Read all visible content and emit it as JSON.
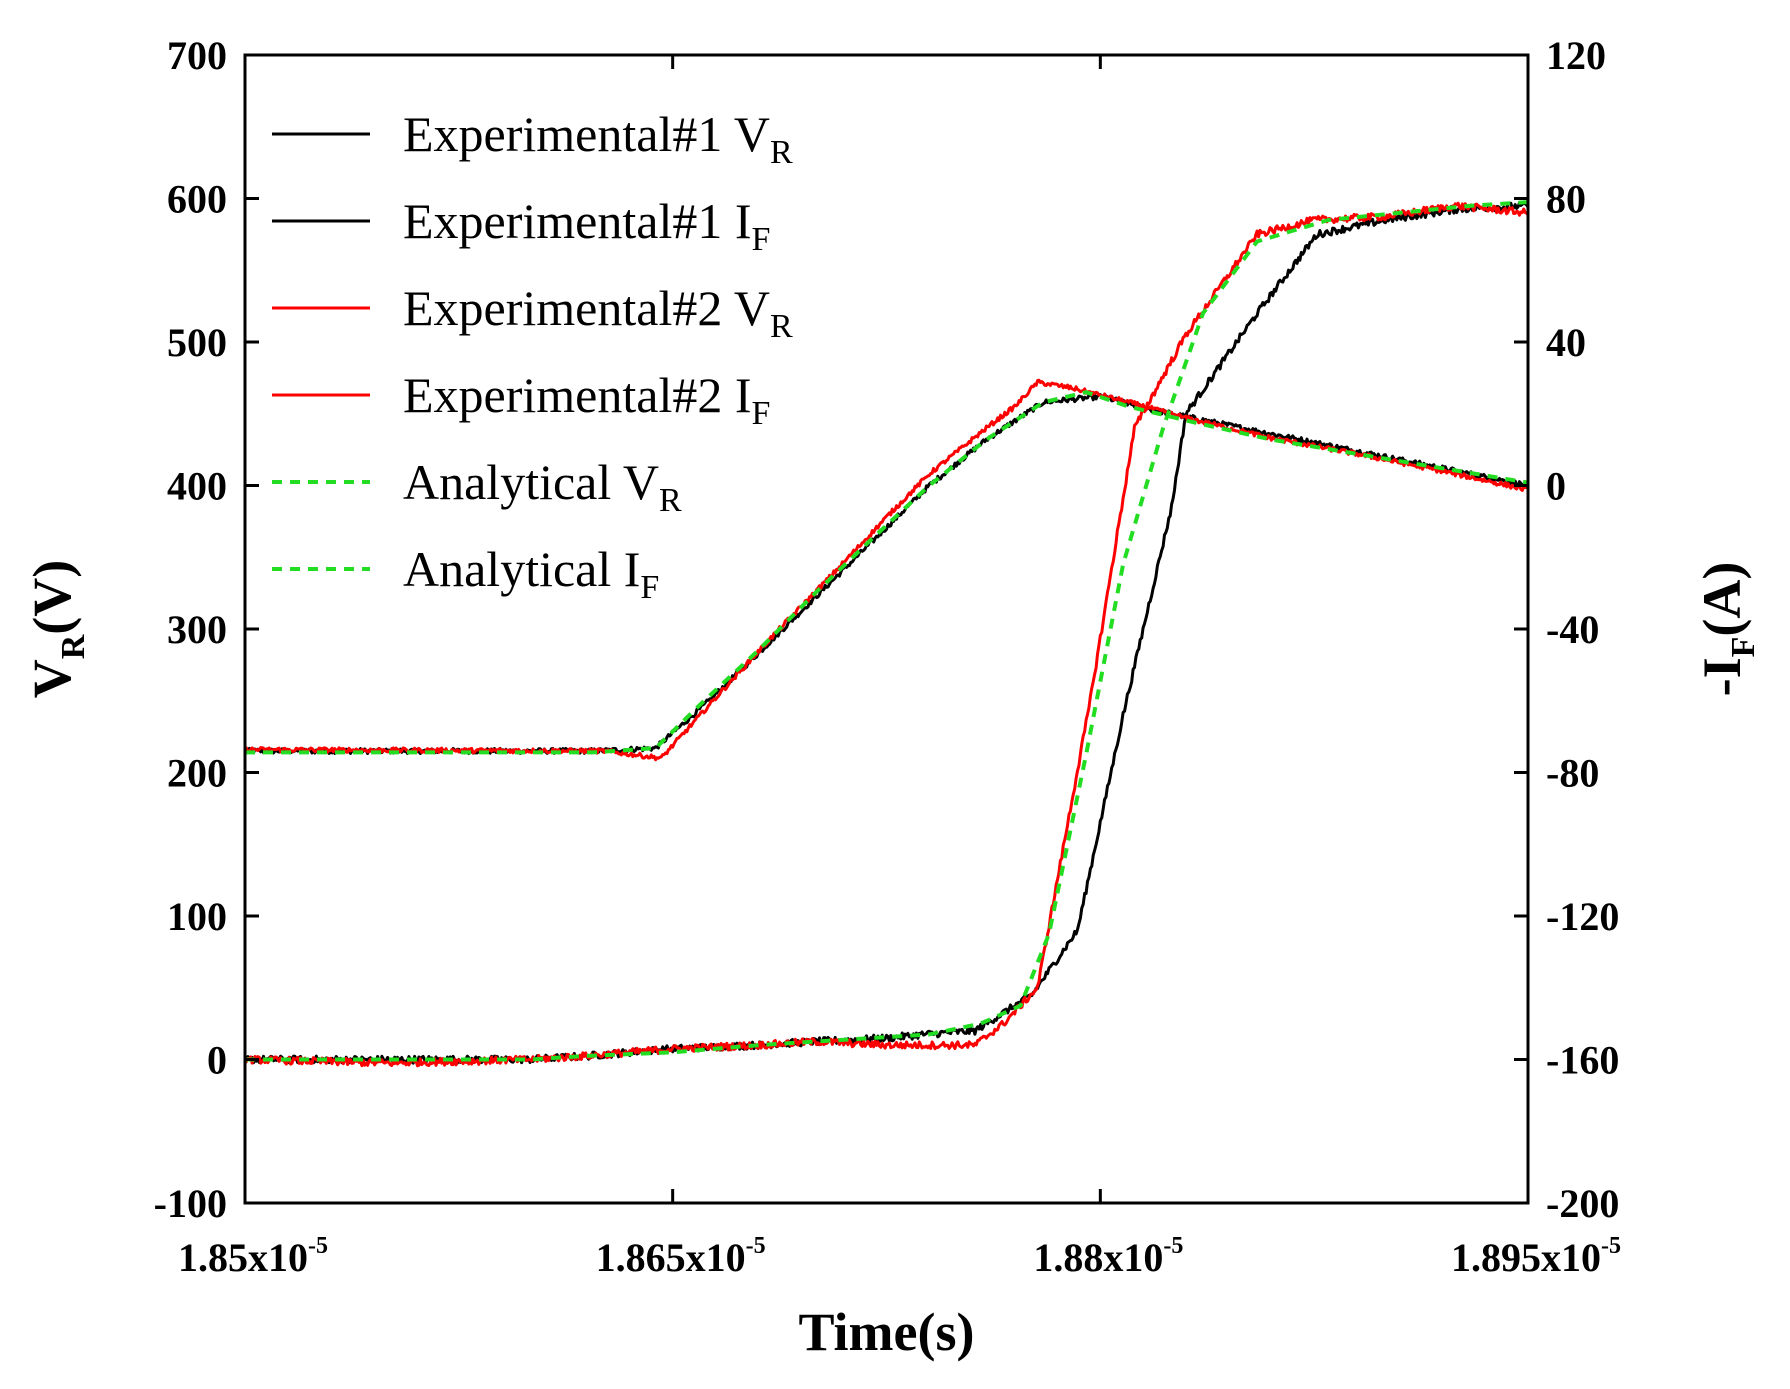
{
  "chart_data": {
    "type": "line",
    "xlabel": "Time(s)",
    "ylabel": {
      "main": "V",
      "sub": "R",
      "tail": "(V)"
    },
    "y2label": {
      "main": "-I",
      "sub": "F",
      "tail": "(A)"
    },
    "xlim": [
      1.85e-05,
      1.895e-05
    ],
    "ylim": [
      -100,
      700
    ],
    "y2lim": [
      -200,
      120
    ],
    "x_ticks": [
      {
        "value": 1.85e-05,
        "base": "1.85x10",
        "exp": "-5"
      },
      {
        "value": 1.865e-05,
        "base": "1.865x10",
        "exp": "-5"
      },
      {
        "value": 1.88e-05,
        "base": "1.88x10",
        "exp": "-5"
      },
      {
        "value": 1.895e-05,
        "base": "1.895x10",
        "exp": "-5"
      }
    ],
    "y_ticks": [
      -100,
      0,
      100,
      200,
      300,
      400,
      500,
      600,
      700
    ],
    "y_tick_labels": [
      "-100",
      "0",
      "100",
      "200",
      "300",
      "400",
      "500",
      "600",
      "700"
    ],
    "y2_ticks": [
      -200,
      -160,
      -120,
      -80,
      -40,
      0,
      40,
      80,
      120
    ],
    "y2_tick_labels": [
      "-200",
      "-160",
      "-120",
      "-80",
      "-40",
      "0",
      "40",
      "80",
      "120"
    ],
    "grid": false,
    "legend_position": "top-left",
    "series": [
      {
        "name": "Experimental#1 VR",
        "legend_main": "Experimental#1 V",
        "legend_sub": "R",
        "axis": "left",
        "color": "#000000",
        "dash": "solid",
        "noise": 1.8,
        "x": [
          1.85e-05,
          1.862e-05,
          1.8623e-05,
          1.8644e-05,
          1.866e-05,
          1.868e-05,
          1.87e-05,
          1.872e-05,
          1.874e-05,
          1.876e-05,
          1.878e-05,
          1.88e-05,
          1.882e-05,
          1.884e-05,
          1.886e-05,
          1.888e-05,
          1.89e-05,
          1.8925e-05,
          1.895e-05
        ],
        "y": [
          215,
          215,
          215,
          217,
          245,
          283,
          322,
          361,
          400,
          432,
          458,
          462,
          452,
          444,
          436,
          428,
          420,
          410,
          400
        ]
      },
      {
        "name": "Experimental#1 IF",
        "legend_main": "Experimental#1 I",
        "legend_sub": "F",
        "axis": "right",
        "color": "#000000",
        "dash": "solid",
        "noise": 1.0,
        "x": [
          1.85e-05,
          1.855e-05,
          1.86e-05,
          1.862e-05,
          1.865e-05,
          1.868e-05,
          1.87e-05,
          1.8726e-05,
          1.8738e-05,
          1.8756e-05,
          1.8776e-05,
          1.8792e-05,
          1.8808e-05,
          1.8825e-05,
          1.883e-05,
          1.8855e-05,
          1.8876e-05,
          1.89e-05,
          1.8925e-05,
          1.895e-05
        ],
        "y": [
          -160,
          -160,
          -160,
          -159,
          -157,
          -156,
          -155,
          -154,
          -153,
          -152,
          -142,
          -124,
          -64,
          -6,
          20,
          48,
          70,
          74,
          77,
          78
        ]
      },
      {
        "name": "Experimental#2 VR",
        "legend_main": "Experimental#2 V",
        "legend_sub": "R",
        "axis": "left",
        "color": "#ff0000",
        "dash": "solid",
        "noise": 1.6,
        "x": [
          1.85e-05,
          1.862e-05,
          1.8626e-05,
          1.8646e-05,
          1.8666e-05,
          1.8686e-05,
          1.8706e-05,
          1.8726e-05,
          1.874e-05,
          1.876e-05,
          1.877e-05,
          1.8778e-05,
          1.879e-05,
          1.881e-05,
          1.883e-05,
          1.886e-05,
          1.889e-05,
          1.892e-05,
          1.895e-05
        ],
        "y": [
          216,
          215,
          215,
          210,
          254,
          297,
          338,
          380,
          408,
          440,
          455,
          472,
          468,
          458,
          447,
          433,
          422,
          410,
          397
        ]
      },
      {
        "name": "Experimental#2 IF",
        "legend_main": "Experimental#2 I",
        "legend_sub": "F",
        "axis": "right",
        "color": "#ff0000",
        "dash": "solid",
        "noise": 1.0,
        "x": [
          1.85e-05,
          1.855e-05,
          1.86e-05,
          1.862e-05,
          1.865e-05,
          1.868e-05,
          1.87e-05,
          1.8726e-05,
          1.8738e-05,
          1.8756e-05,
          1.8766e-05,
          1.8778e-05,
          1.8796e-05,
          1.8812e-05,
          1.883e-05,
          1.8855e-05,
          1.8875e-05,
          1.89e-05,
          1.8925e-05,
          1.895e-05
        ],
        "y": [
          -160,
          -161,
          -160,
          -159,
          -157,
          -156,
          -155,
          -156,
          -156,
          -156,
          -150,
          -140,
          -62,
          16,
          42,
          70,
          74,
          75,
          78,
          76
        ]
      },
      {
        "name": "Analytical VR",
        "legend_main": "Analytical V",
        "legend_sub": "R",
        "axis": "left",
        "color": "#22dd22",
        "dash": "dashed",
        "noise": 0,
        "x": [
          1.85e-05,
          1.862e-05,
          1.8622e-05,
          1.8644e-05,
          1.866e-05,
          1.868e-05,
          1.87e-05,
          1.872e-05,
          1.874e-05,
          1.876e-05,
          1.878e-05,
          1.8795e-05,
          1.881e-05,
          1.8835e-05,
          1.886e-05,
          1.889e-05,
          1.892e-05,
          1.895e-05
        ],
        "y": [
          214,
          214,
          214,
          217,
          248,
          285,
          325,
          363,
          400,
          432,
          458,
          465,
          455,
          443,
          432,
          422,
          412,
          402
        ]
      },
      {
        "name": "Analytical IF",
        "legend_main": "Analytical I",
        "legend_sub": "F",
        "axis": "right",
        "color": "#22dd22",
        "dash": "dashed",
        "noise": 0,
        "x": [
          1.85e-05,
          1.855e-05,
          1.86e-05,
          1.862e-05,
          1.865e-05,
          1.868e-05,
          1.87e-05,
          1.872e-05,
          1.874e-05,
          1.8758e-05,
          1.8772e-05,
          1.8782e-05,
          1.8795e-05,
          1.8808e-05,
          1.8822e-05,
          1.8836e-05,
          1.8855e-05,
          1.888e-05,
          1.8905e-05,
          1.893e-05,
          1.895e-05
        ],
        "y": [
          -160,
          -160,
          -160,
          -159,
          -158,
          -156,
          -155,
          -154,
          -153,
          -150,
          -145,
          -125,
          -75,
          -22,
          16,
          48,
          68,
          74,
          76,
          78,
          79
        ]
      }
    ]
  }
}
